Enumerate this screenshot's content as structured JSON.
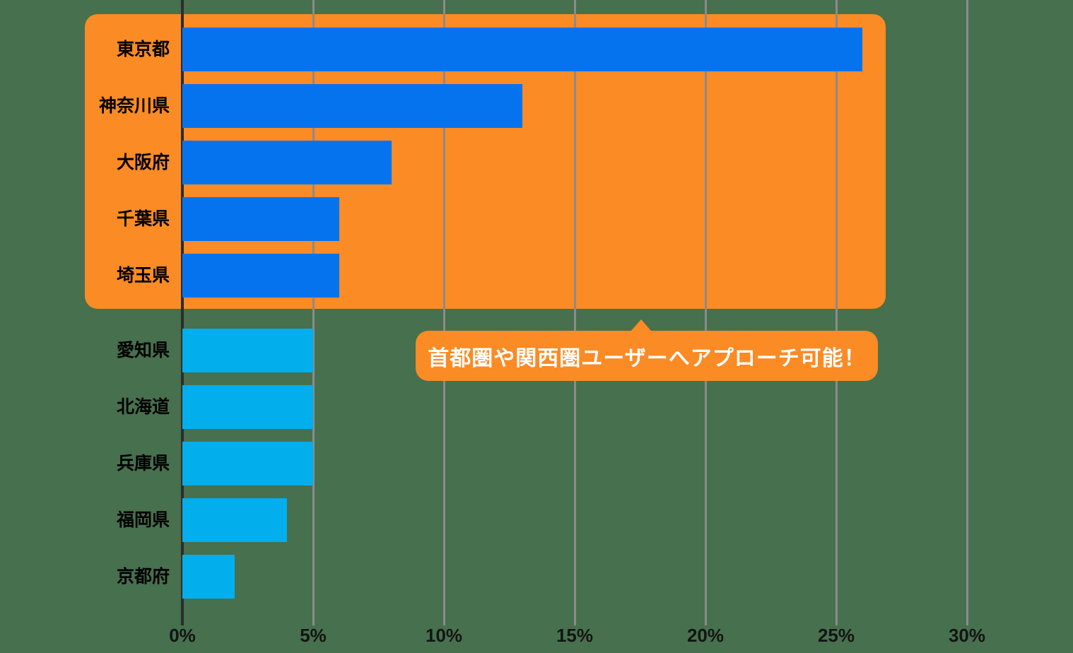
{
  "chart_data": {
    "type": "bar",
    "orientation": "horizontal",
    "categories": [
      "東京都",
      "神奈川県",
      "大阪府",
      "千葉県",
      "埼玉県",
      "愛知県",
      "北海道",
      "兵庫県",
      "福岡県",
      "京都府"
    ],
    "values": [
      26,
      13,
      8,
      6,
      6,
      5,
      5,
      5,
      4,
      2
    ],
    "unit": "%",
    "title": "",
    "xlabel": "",
    "ylabel": "",
    "xlim": [
      0,
      30
    ],
    "x_ticks": [
      "0%",
      "5%",
      "10%",
      "15%",
      "20%",
      "25%",
      "30%"
    ],
    "x_tick_values": [
      0,
      5,
      10,
      15,
      20,
      25,
      30
    ],
    "grid": true,
    "legend": "none",
    "highlighted_categories": [
      "東京都",
      "神奈川県",
      "大阪府",
      "千葉県",
      "埼玉県"
    ],
    "annotation": "首都圏や関西圏ユーザーへアプローチ可能！"
  },
  "callout": {
    "text": "首都圏や関西圏ユーザーへアプローチ可能！"
  },
  "colors": {
    "background": "#47704E",
    "highlight_box": "#FA8B25",
    "bar_highlight": "#0673EE",
    "bar_normal": "#03AEEC",
    "axis_line": "#2D2D2D",
    "gridline": "#8B8B8B",
    "label_text": "#000000",
    "tick_text": "#141414",
    "callout_bg": "#FA8B25",
    "callout_text": "#FFFFFF"
  }
}
